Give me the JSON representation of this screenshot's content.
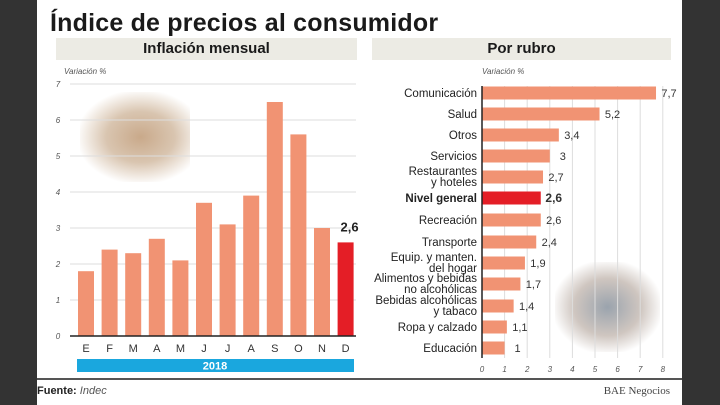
{
  "title": "Índice de precios al consumidor",
  "colors": {
    "bar": "#f19373",
    "highlight": "#e41e26",
    "year_band": "#1aa7de",
    "panel": "#ecebe4",
    "grid": "#dddddd"
  },
  "footer": {
    "source_label": "Fuente:",
    "source": "Indec",
    "brand": "BAE Negocios"
  },
  "chart_data": [
    {
      "type": "bar",
      "title": "Inflación mensual",
      "ylabel": "Variación %",
      "xlabel": "2018",
      "ylim": [
        0,
        7
      ],
      "yticks": [
        "0",
        "1",
        "2",
        "3",
        "4",
        "5",
        "6",
        "7"
      ],
      "categories": [
        "E",
        "F",
        "M",
        "A",
        "M",
        "J",
        "J",
        "A",
        "S",
        "O",
        "N",
        "D"
      ],
      "values": [
        1.8,
        2.4,
        2.3,
        2.7,
        2.1,
        3.7,
        3.1,
        3.9,
        6.5,
        5.6,
        3.0,
        2.6
      ],
      "highlight_index": 11,
      "annotation": "2,6",
      "grid": true
    },
    {
      "type": "bar",
      "orientation": "horizontal",
      "title": "Por rubro",
      "xlabel": "Variación %",
      "xlim": [
        0,
        8
      ],
      "xticks": [
        "0",
        "1",
        "2",
        "3",
        "4",
        "5",
        "6",
        "7",
        "8"
      ],
      "categories": [
        [
          "Comunicación"
        ],
        [
          "Salud"
        ],
        [
          "Otros"
        ],
        [
          "Servicios"
        ],
        [
          "Restaurantes",
          "y hoteles"
        ],
        [
          "Nivel general"
        ],
        [
          "Recreación"
        ],
        [
          "Transporte"
        ],
        [
          "Equip. y manten.",
          "del hogar"
        ],
        [
          "Alimentos y bebidas",
          "no alcohólicas"
        ],
        [
          "Bebidas alcohólicas",
          "y tabaco"
        ],
        [
          "Ropa y calzado"
        ],
        [
          "Educación"
        ]
      ],
      "values": [
        7.7,
        5.2,
        3.4,
        3,
        2.7,
        2.6,
        2.6,
        2.4,
        1.9,
        1.7,
        1.4,
        1.1,
        1
      ],
      "value_labels": [
        "7,7",
        "5,2",
        "3,4",
        "3",
        "2,7",
        "2,6",
        "2,6",
        "2,4",
        "1,9",
        "1,7",
        "1,4",
        "1,1",
        "1"
      ],
      "highlight_index": 5,
      "grid": true
    }
  ]
}
